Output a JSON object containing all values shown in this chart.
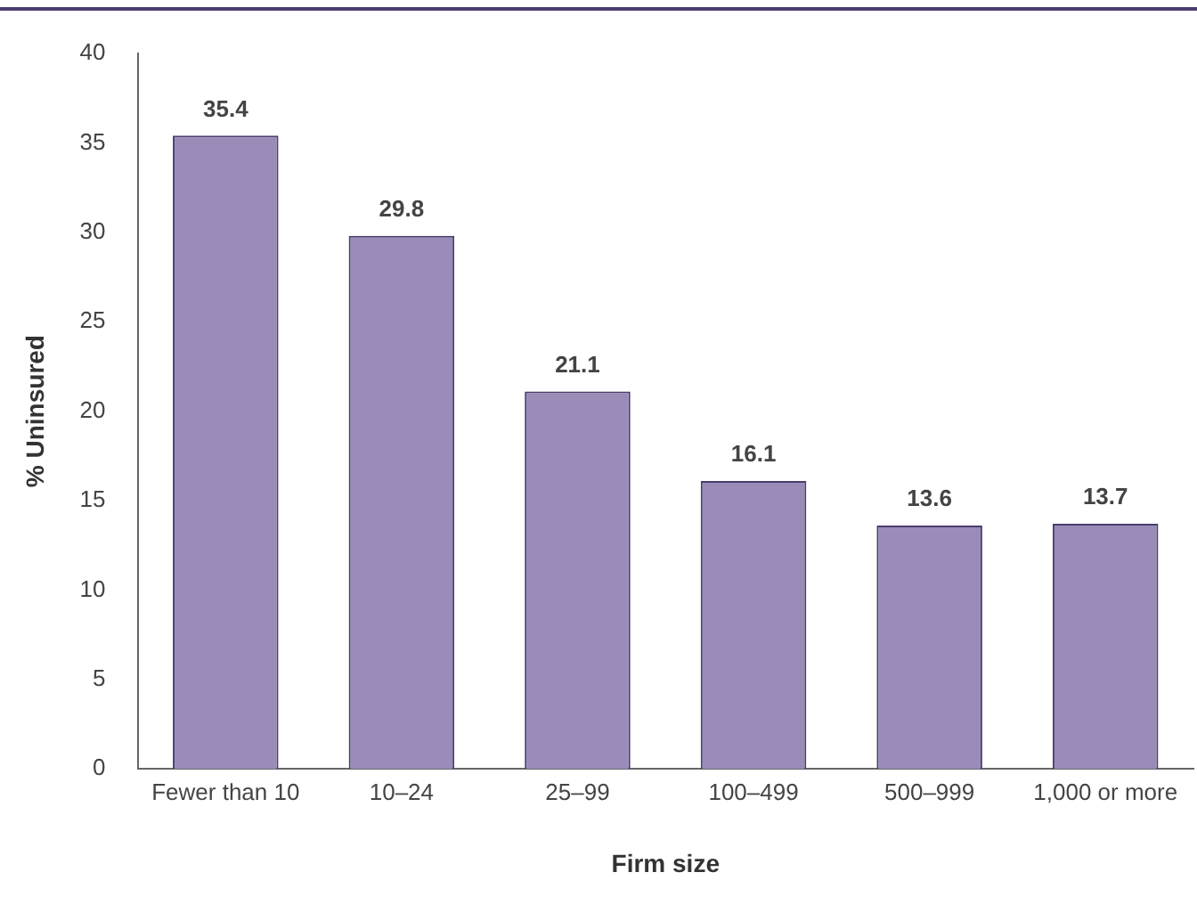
{
  "chart_data": {
    "type": "bar",
    "xlabel": "Firm size",
    "ylabel": "% Uninsured",
    "categories": [
      "Fewer than 10",
      "10–24",
      "25–99",
      "100–499",
      "500–999",
      "1,000 or more"
    ],
    "values": [
      35.4,
      29.8,
      21.1,
      16.1,
      13.6,
      13.7
    ],
    "color": "#9b8bb8",
    "ylim": [
      0,
      40
    ],
    "yticks": [
      0,
      5,
      10,
      15,
      20,
      25,
      30,
      35,
      40
    ],
    "grid": false,
    "legend": false,
    "data_labels": true
  }
}
